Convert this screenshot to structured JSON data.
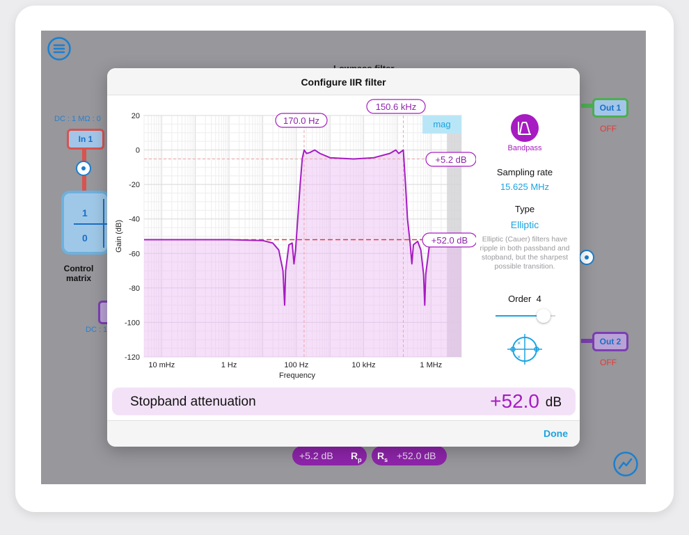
{
  "background": {
    "dc_top": "DC : 1 MΩ : 0",
    "dc_bottom": "DC : 1",
    "in1": "In 1",
    "out1": "Out 1",
    "out1_state": "OFF",
    "out2": "Out 2",
    "out2_state": "OFF",
    "matrix_val_top": "1",
    "matrix_val_bottom": "0",
    "matrix_label_1": "Control",
    "matrix_label_2": "matrix",
    "behind_title": "Lowpass filter"
  },
  "modal": {
    "title": "Configure IIR filter",
    "done_label": "Done",
    "side": {
      "filter_label": "Bandpass",
      "sampling_title": "Sampling rate",
      "sampling_value": "15.625 MHz",
      "type_title": "Type",
      "type_value": "Elliptic",
      "type_description": "Elliptic (Cauer) filters have ripple in both passband and stopband, but the sharpest possible transition.",
      "order_label": "Order",
      "order_value": "4",
      "order_level": 0.9
    },
    "stop_title": "Stopband attenuation",
    "stop_value": "+52.0",
    "stop_unit": "dB"
  },
  "bottom_pills": {
    "rp_value": "+5.2 dB",
    "rp_label": "R",
    "rp_sub": "p",
    "rs_label": "R",
    "rs_sub": "s",
    "rs_value": "+52.0 dB"
  },
  "colors": {
    "accent": "#8e24aa",
    "curve": "#a61bc2",
    "link": "#1aa3e0",
    "off": "#e53935"
  },
  "chart_data": {
    "type": "line",
    "xlabel": "Frequency",
    "ylabel": "Gain (dB)",
    "x_scale": "log",
    "xlim_hz": [
      0.003,
      8000000
    ],
    "ylim": [
      -120,
      20
    ],
    "y_ticks": [
      20,
      0,
      -20,
      -40,
      -60,
      -80,
      -100,
      -120
    ],
    "x_ticks": [
      {
        "label": "10 mHz",
        "hz": 0.01
      },
      {
        "label": "1 Hz",
        "hz": 1
      },
      {
        "label": "100 Hz",
        "hz": 100
      },
      {
        "label": "10 kHz",
        "hz": 10000
      },
      {
        "label": "1 MHz",
        "hz": 1000000
      }
    ],
    "mode_label": "mag",
    "markers": {
      "low_cut_label": "170.0 Hz",
      "low_cut_hz": 170,
      "high_cut_label": "150.6 kHz",
      "high_cut_hz": 150600,
      "passband_ripple_label": "+5.2 dB",
      "passband_ripple_db": -5.2,
      "stopband_label": "+52.0 dB",
      "stopband_db": -52
    },
    "series": [
      {
        "points": [
          [
            0.003,
            -52
          ],
          [
            1,
            -52
          ],
          [
            10,
            -52.5
          ],
          [
            20,
            -54
          ],
          [
            30,
            -58
          ],
          [
            40,
            -70
          ],
          [
            45,
            -90
          ],
          [
            48,
            -70
          ],
          [
            60,
            -55
          ],
          [
            75,
            -54
          ],
          [
            85,
            -66
          ],
          [
            95,
            -58
          ],
          [
            110,
            -40
          ],
          [
            130,
            -20
          ],
          [
            150,
            -5
          ],
          [
            170,
            0
          ],
          [
            200,
            -2
          ],
          [
            250,
            -1.5
          ],
          [
            350,
            0
          ],
          [
            500,
            -2
          ],
          [
            1000,
            -4.5
          ],
          [
            5000,
            -5.2
          ],
          [
            20000,
            -4.5
          ],
          [
            60000,
            -2
          ],
          [
            90000,
            0
          ],
          [
            110000,
            -2
          ],
          [
            130000,
            -1
          ],
          [
            150600,
            0
          ],
          [
            175000,
            -20
          ],
          [
            200000,
            -40
          ],
          [
            240000,
            -54
          ],
          [
            270000,
            -66
          ],
          [
            300000,
            -55
          ],
          [
            400000,
            -53
          ],
          [
            500000,
            -58
          ],
          [
            600000,
            -72
          ],
          [
            650000,
            -90
          ],
          [
            700000,
            -72
          ],
          [
            900000,
            -55
          ],
          [
            1500000,
            -52.5
          ],
          [
            8000000,
            -52
          ]
        ]
      }
    ]
  }
}
